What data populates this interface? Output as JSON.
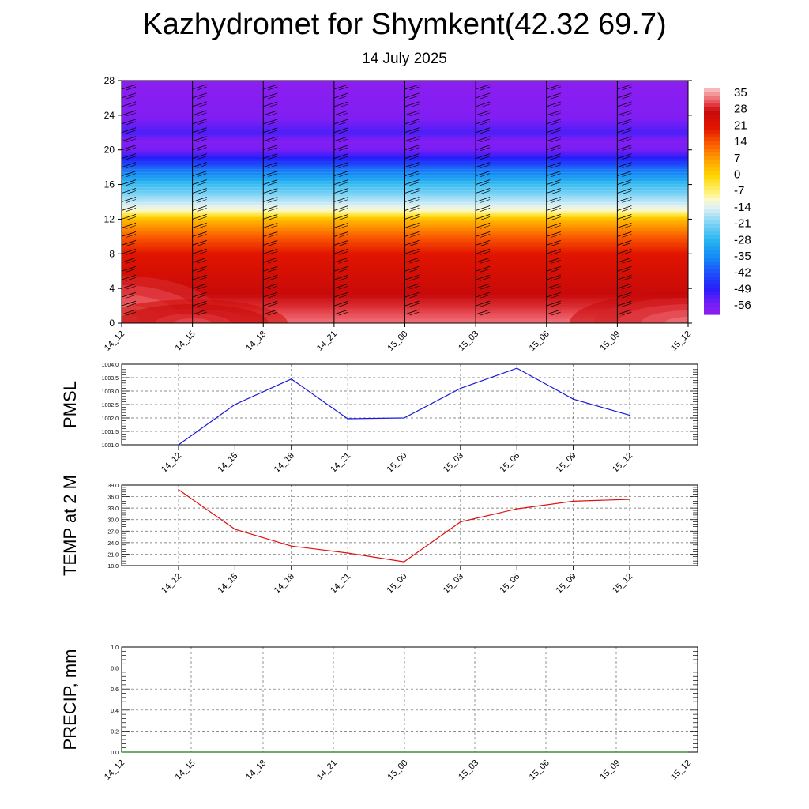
{
  "header": {
    "title": "Kazhydromet for Shymkent(42.32 69.7)",
    "subtitle": "14 July 2025"
  },
  "colors": {
    "pmsl_line": "#1a1adc",
    "temp_line": "#e01010",
    "precip_line": "#1a7a1a",
    "grid": "#666666"
  },
  "chart_data": [
    {
      "type": "heatmap",
      "ylim": [
        0,
        28
      ],
      "yticks": [
        "0",
        "4",
        "8",
        "12",
        "16",
        "20",
        "24",
        "28"
      ],
      "categories": [
        "14_12",
        "14_15",
        "14_18",
        "14_21",
        "15_00",
        "15_03",
        "15_06",
        "15_09",
        "15_12"
      ],
      "colorbar": {
        "labels": [
          "35",
          "28",
          "21",
          "14",
          "7",
          "0",
          "-7",
          "-14",
          "-21",
          "-28",
          "-35",
          "-42",
          "-49",
          "-56"
        ],
        "range": [
          -60,
          38
        ]
      },
      "levels_temp": [
        {
          "h": 0,
          "t": 34
        },
        {
          "h": 2,
          "t": 30
        },
        {
          "h": 4,
          "t": 27
        },
        {
          "h": 6,
          "t": 24
        },
        {
          "h": 8,
          "t": 21
        },
        {
          "h": 10,
          "t": 14
        },
        {
          "h": 12,
          "t": 4
        },
        {
          "h": 13,
          "t": -10
        },
        {
          "h": 14,
          "t": -16
        },
        {
          "h": 16,
          "t": -26
        },
        {
          "h": 18,
          "t": -40
        },
        {
          "h": 20,
          "t": -56
        },
        {
          "h": 21,
          "t": -58
        },
        {
          "h": 22,
          "t": -52
        },
        {
          "h": 24,
          "t": -58
        },
        {
          "h": 28,
          "t": -60
        }
      ],
      "wind_columns": [
        "14_12",
        "14_15",
        "14_18",
        "14_21",
        "15_00",
        "15_03",
        "15_06",
        "15_09",
        "15_12"
      ],
      "wind_heights": [
        1,
        2,
        3,
        4,
        5,
        6,
        7,
        8,
        9,
        10,
        11,
        12,
        13,
        14,
        15,
        16,
        17,
        18,
        19,
        20,
        21,
        22,
        23,
        24,
        25,
        26,
        27
      ]
    },
    {
      "type": "line",
      "ylabel": "PMSL",
      "ylim": [
        1001.0,
        1004.0
      ],
      "yticks": [
        "1001.0",
        "1001.5",
        "1002.0",
        "1002.5",
        "1003.0",
        "1003.5",
        "1004.0"
      ],
      "categories": [
        "14_12",
        "14_15",
        "14_18",
        "14_21",
        "15_00",
        "15_03",
        "15_06",
        "15_09",
        "15_12"
      ],
      "values": [
        1001.0,
        1002.5,
        1003.45,
        1001.97,
        1002.0,
        1003.1,
        1003.85,
        1002.7,
        1002.1
      ]
    },
    {
      "type": "line",
      "ylabel": "TEMP at 2 M",
      "ylim": [
        18.0,
        39.0
      ],
      "yticks": [
        "18.0",
        "21.0",
        "24.0",
        "27.0",
        "30.0",
        "33.0",
        "36.0",
        "39.0"
      ],
      "categories": [
        "14_12",
        "14_15",
        "14_18",
        "14_21",
        "15_00",
        "15_03",
        "15_06",
        "15_09",
        "15_12"
      ],
      "values": [
        37.8,
        27.5,
        23.1,
        21.3,
        19.0,
        29.4,
        32.8,
        34.8,
        35.3
      ]
    },
    {
      "type": "line",
      "ylabel": "PRECIP, mm",
      "ylim": [
        0.0,
        1.0
      ],
      "yticks": [
        "0.0",
        "0.2",
        "0.4",
        "0.6",
        "0.8",
        "1.0"
      ],
      "categories": [
        "14_12",
        "14_15",
        "14_18",
        "14_21",
        "15_00",
        "15_03",
        "15_06",
        "15_09",
        "15_12"
      ],
      "values": [
        0,
        0,
        0,
        0,
        0,
        0,
        0,
        0,
        0
      ]
    }
  ]
}
